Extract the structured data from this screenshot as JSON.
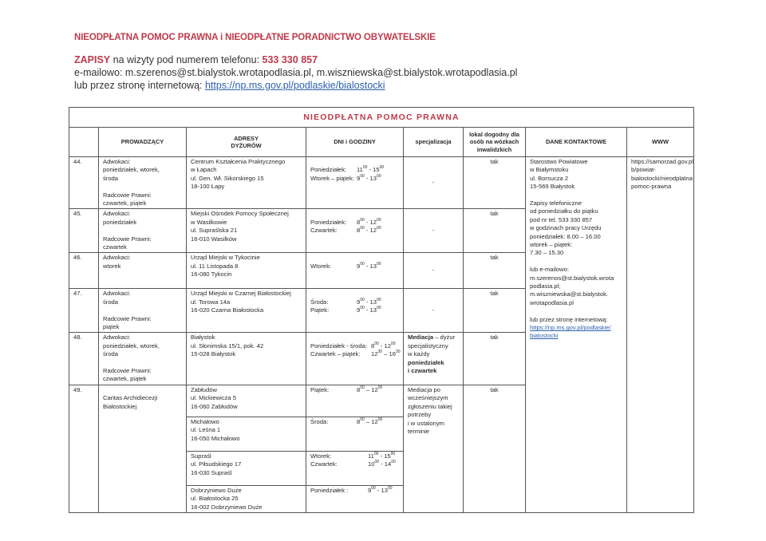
{
  "header": {
    "title": "NIEODPŁATNA POMOC PRAWNA i NIEODPŁATNE PORADNICTWO OBYWATELSKIE",
    "zapisy_label": "ZAPISY",
    "zapisy_text": " na wizyty pod numerem telefonu: ",
    "phone": "533 330 857",
    "email_line": "e-mailowo: m.szerenos@st.bialystok.wrotapodlasia.pl, m.wiszniewska@st.bialystok.wrotapodlasia.pl",
    "web_text": "lub przez stronę internetową: ",
    "web_link": "https://np.ms.gov.pl/podlaskie/bialostocki"
  },
  "table": {
    "title": "NIEODPŁATNA POMOC PRAWNA",
    "columns": [
      "",
      "PROWADZĄCY",
      "ADRESY\nDYŻURÓW",
      "DNI i GODZINY",
      "specjalizacja",
      "lokal dogodny dla osób na wózkach inwalidzkich",
      "DANE KONTAKTOWE",
      "WWW"
    ],
    "contact": [
      "Starostwo Powiatowe",
      "w Białymstoku",
      "ul. Borsucza 2",
      "15-569 Białystok",
      "",
      "Zapisy telefoniczne",
      "od poniedziałku do piątku",
      "pod nr tel. 533 330 857",
      "w godzinach pracy Urzędu",
      "poniedziałek: 8.00 – 16.00",
      "wtorek – piątek:",
      "7.30 – 15.30",
      "",
      "lub e-mailowo:",
      "m.szerenos@st.bialystok.wrota",
      "podlasia.pl;",
      "m.wiszniewska@st.bialystok.",
      "wrotapodlasia.pl",
      "",
      "lub przez stronę internetową:"
    ],
    "contact_links": [
      "https://np.ms.gov.pl/podlaskie/",
      "bialostocki"
    ],
    "www": [
      "https://samorzad.gov.pl/we",
      "b/powiat-",
      "bialostocki/nieodplatna-",
      "pomoc-prawna"
    ],
    "rows": [
      {
        "num": "44.",
        "prowadzacy": [
          "Adwokaci:",
          "poniedziałek, wtorek,",
          "środa",
          "",
          "Radcowie Prawni:",
          "czwartek, piątek"
        ],
        "locations": [
          {
            "address": [
              "Centrum Kształcenia Praktycznego",
              "w Łapach",
              "ul. Gen. Wł. Sikorskiego 15",
              "18-100 Łapy"
            ],
            "hours": [
              {
                "day": "Poniedziałek:",
                "from": [
                  "11",
                  "00"
                ],
                "sep": " - ",
                "to": [
                  "15",
                  "00"
                ]
              },
              {
                "day": "Wtorek – piątek:",
                "from": [
                  "9",
                  "00"
                ],
                "sep": " - ",
                "to": [
                  "13",
                  "00"
                ]
              }
            ]
          }
        ],
        "spec": [
          [
            {
              "text": "-",
              "bold": false
            }
          ]
        ],
        "lokal": "tak"
      },
      {
        "num": "45.",
        "prowadzacy": [
          "Adwokaci:",
          "poniedziałek",
          "",
          "Radcowie Prawni:",
          "czwartek"
        ],
        "locations": [
          {
            "address": [
              "Miejski Ośrodek Pomocy Społecznej",
              "w Wasilkowie",
              "ul. Supraślska 21",
              "16-010 Wasilków"
            ],
            "hours": [
              {
                "day": "Poniedziałek:",
                "from": [
                  "8",
                  "00"
                ],
                "sep": " - ",
                "to": [
                  "12",
                  "00"
                ]
              },
              {
                "day": "Czwartek:",
                "from": [
                  "8",
                  "00"
                ],
                "sep": " - ",
                "to": [
                  "12",
                  "00"
                ]
              }
            ]
          }
        ],
        "spec": [
          [
            {
              "text": "-",
              "bold": false
            }
          ]
        ],
        "lokal": "tak"
      },
      {
        "num": "46.",
        "prowadzacy": [
          "Adwokaci:",
          "wtorek"
        ],
        "locations": [
          {
            "address": [
              "Urząd Miejski w Tykocinie",
              "ul. 11 Listopada 8",
              "16-080 Tykocin"
            ],
            "hours": [
              {
                "day": "Wtorek:",
                "from": [
                  "9",
                  "00"
                ],
                "sep": " - ",
                "to": [
                  "13",
                  "00"
                ]
              }
            ]
          }
        ],
        "spec": [
          [
            {
              "text": "-",
              "bold": false
            }
          ]
        ],
        "lokal": "tak"
      },
      {
        "num": "47.",
        "prowadzacy": [
          "Adwokaci:",
          "środa",
          "",
          "Radcowie Prawni:",
          "piątek"
        ],
        "locations": [
          {
            "address": [
              "Urząd Miejski w Czarnej Białostockiej",
              "ul. Torowa 14a",
              "16-020 Czarna Białostocka"
            ],
            "hours": [
              {
                "day": "Środa:",
                "from": [
                  "9",
                  "00"
                ],
                "sep": " - ",
                "to": [
                  "13",
                  "00"
                ]
              },
              {
                "day": "Piątek:",
                "from": [
                  "9",
                  "00"
                ],
                "sep": " - ",
                "to": [
                  "13",
                  "00"
                ]
              }
            ]
          }
        ],
        "spec": [
          [
            {
              "text": "-",
              "bold": false
            }
          ]
        ],
        "lokal": "tak"
      },
      {
        "num": "48.",
        "prowadzacy": [
          "Adwokaci:",
          "poniedziałek, wtorek,",
          "środa",
          "",
          "Radcowie Prawni:",
          "czwartek, piątek"
        ],
        "locations": [
          {
            "address": [
              "Białystok",
              "ul. Słonimska 15/1, pok. 42",
              "15-028 Białystok"
            ],
            "hours": [
              {
                "day": "Poniedziałek - środa:",
                "from": [
                  "8",
                  "00"
                ],
                "sep": " - ",
                "to": [
                  "12",
                  "00"
                ]
              },
              {
                "day": "Czwartek – piątek:",
                "from": [
                  "12",
                  "30"
                ],
                "sep": " – ",
                "to": [
                  "16",
                  "30"
                ]
              }
            ]
          }
        ],
        "spec": [
          [
            {
              "text": "Mediacja",
              "bold": true
            },
            {
              "text": " – dyżur",
              "bold": false
            }
          ],
          [
            {
              "text": "specjalistyczny",
              "bold": false
            }
          ],
          [
            {
              "text": "w każdy",
              "bold": false
            }
          ],
          [
            {
              "text": "poniedziałek",
              "bold": true
            }
          ],
          [
            {
              "text": "i czwartek",
              "bold": true
            }
          ]
        ],
        "lokal": "tak"
      },
      {
        "num": "49.",
        "prowadzacy": [
          "",
          "Caritas Archidiecezji",
          "Białostockiej"
        ],
        "locations": [
          {
            "address": [
              "Zabłudów",
              "ul. Mickiewicza 5",
              "16-060 Zabłudów"
            ],
            "hours": [
              {
                "day": "Piątek:",
                "from": [
                  "8",
                  "00"
                ],
                "sep": " – ",
                "to": [
                  "12",
                  "00"
                ]
              }
            ]
          },
          {
            "address": [
              "Michałowo",
              "ul. Leśna  1",
              "16-050 Michałowo"
            ],
            "hours": [
              {
                "day": "Środa:",
                "from": [
                  "8",
                  "00"
                ],
                "sep": " – ",
                "to": [
                  "12",
                  "00"
                ]
              }
            ]
          },
          {
            "address": [
              "Supraśl",
              "ul. Piłsudskiego 17",
              "16-030 Supraśl"
            ],
            "hours": [
              {
                "day": "Wtorek:",
                "from": [
                  "11",
                  "00"
                ],
                "sep": " - ",
                "to": [
                  "15",
                  "00"
                ]
              },
              {
                "day": "Czwartek:",
                "from": [
                  "10",
                  "00"
                ],
                "sep": " - ",
                "to": [
                  "14",
                  "00"
                ]
              }
            ]
          },
          {
            "address": [
              "Dobrzyniewo Duże",
              "ul. Białostocka 25",
              "16-002 Dobrzyniewo Duże"
            ],
            "hours": [
              {
                "day": "Poniedziałek :",
                "from": [
                  "9",
                  "00"
                ],
                "sep": " - ",
                "to": [
                  "13",
                  "00"
                ]
              }
            ]
          }
        ],
        "spec": [
          [
            {
              "text": "Mediacja po",
              "bold": false
            }
          ],
          [
            {
              "text": "wcześniejszym",
              "bold": false
            }
          ],
          [
            {
              "text": "zgłoszeniu takiej",
              "bold": false
            }
          ],
          [
            {
              "text": "potrzeby",
              "bold": false
            }
          ],
          [
            {
              "text": "i w ustalonym",
              "bold": false
            }
          ],
          [
            {
              "text": "terminie",
              "bold": false
            }
          ]
        ],
        "lokal": "tak"
      }
    ]
  }
}
